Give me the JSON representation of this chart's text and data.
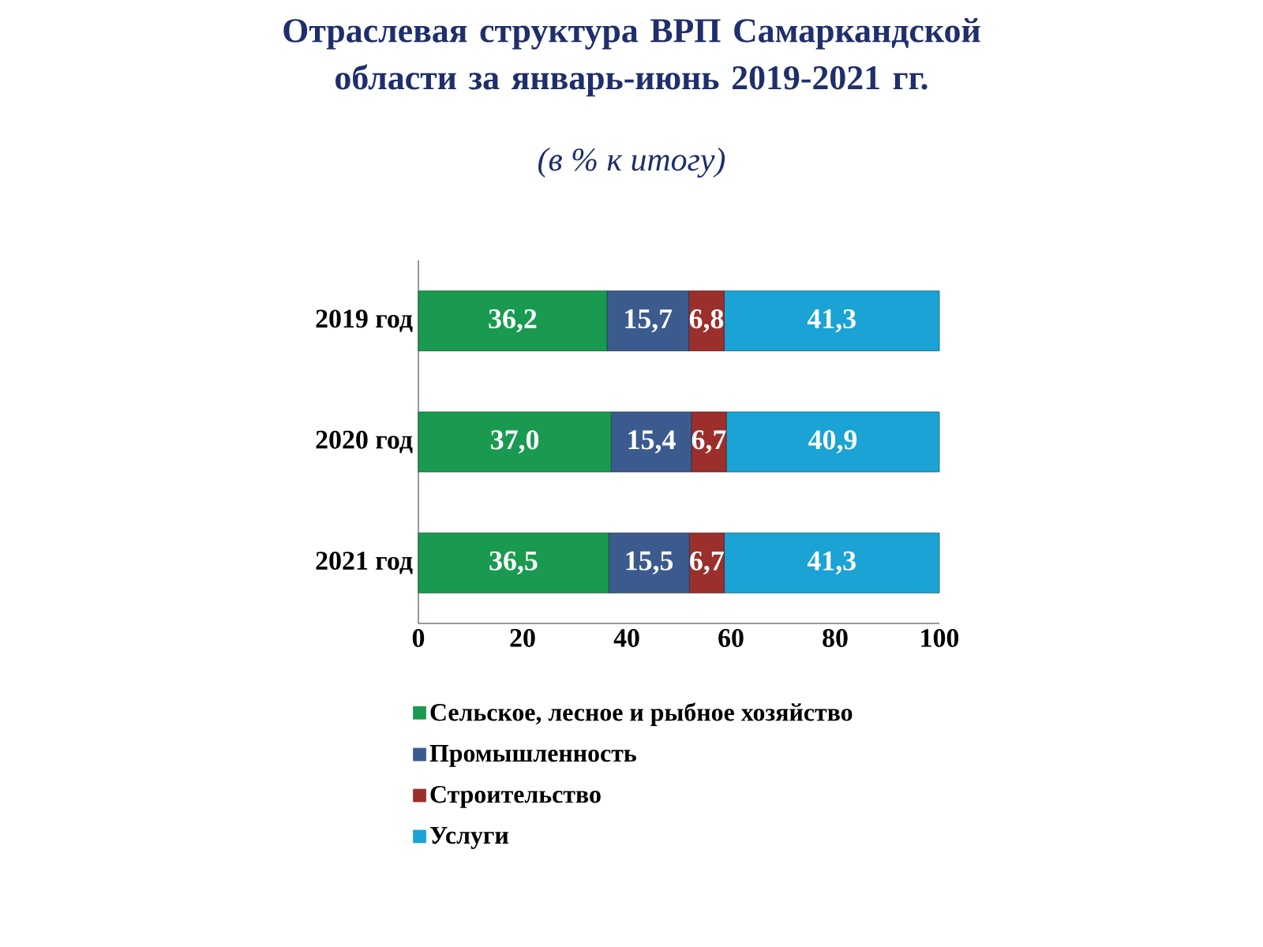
{
  "chart_data": {
    "type": "bar",
    "orientation": "horizontal",
    "stacked": true,
    "title": "Отраслевая структура ВРП Самаркандской области за январь-июнь 2019-2021 гг.",
    "subtitle": "(в % к итогу)",
    "categories": [
      "2019 год",
      "2020 год",
      "2021 год"
    ],
    "series": [
      {
        "name": "Сельское, лесное и рыбное хозяйство",
        "color": "#1a9a50",
        "values": [
          36.2,
          37.0,
          36.5
        ],
        "value_labels": [
          "36,2",
          "37,0",
          "36,5"
        ]
      },
      {
        "name": "Промышленность",
        "color": "#3b5b8e",
        "values": [
          15.7,
          15.4,
          15.5
        ],
        "value_labels": [
          "15,7",
          "15,4",
          "15,5"
        ]
      },
      {
        "name": "Строительство",
        "color": "#9b2f2c",
        "values": [
          6.8,
          6.7,
          6.7
        ],
        "value_labels": [
          "6,8",
          "6,7",
          "6,7"
        ]
      },
      {
        "name": "Услуги",
        "color": "#1aa3d4",
        "values": [
          41.3,
          40.9,
          41.3
        ],
        "value_labels": [
          "41,3",
          "40,9",
          "41,3"
        ]
      }
    ],
    "xlim": [
      0,
      100
    ],
    "xticks": [
      0,
      20,
      40,
      60,
      80,
      100
    ],
    "grid": false,
    "legend": "bottom"
  }
}
